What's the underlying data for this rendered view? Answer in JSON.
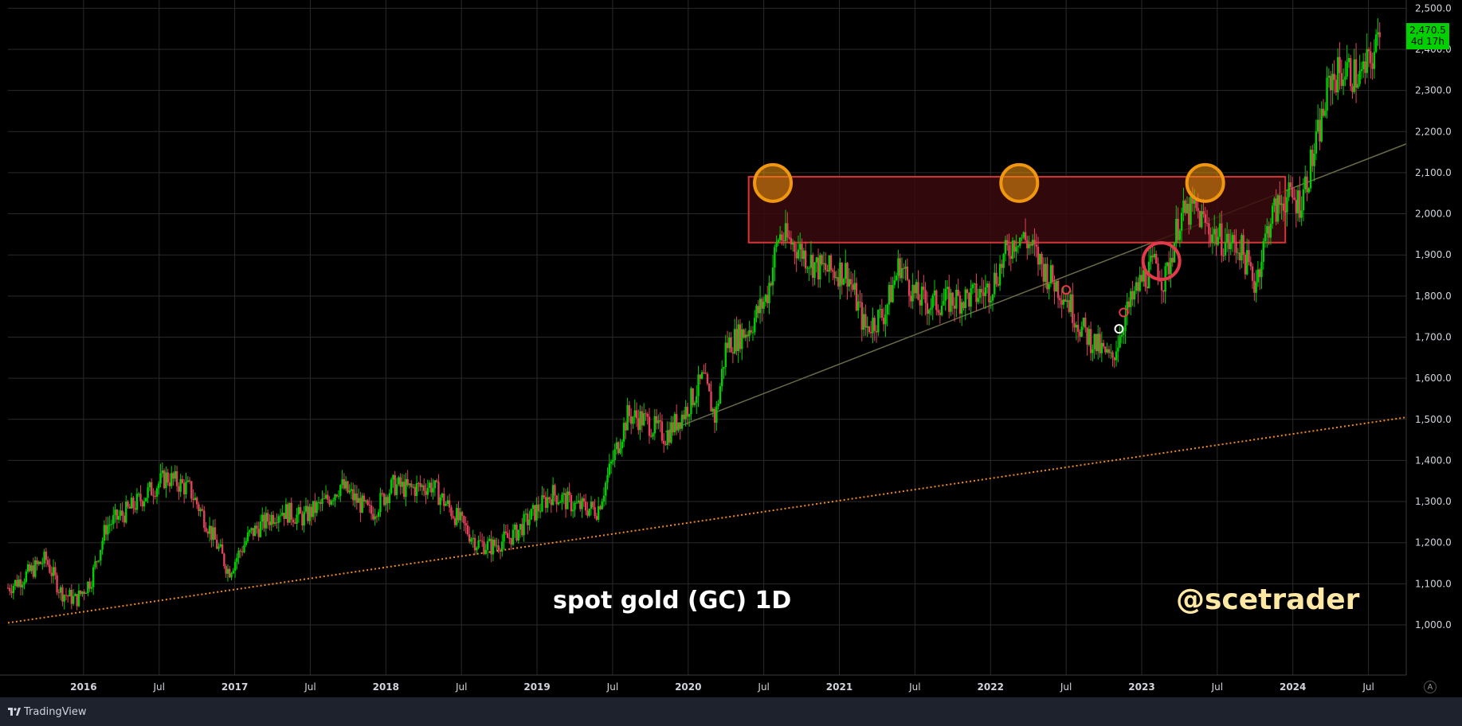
{
  "footer": {
    "brand": "TradingView",
    "logo_icon": "tradingview-logo-icon"
  },
  "annotations": {
    "title_text": "spot gold (GC) 1D",
    "watermark_text": "@scetrader"
  },
  "price_badge": {
    "price": "2,470.5",
    "countdown": "4d 17h"
  },
  "auto_scale_label": "A",
  "chart_data": {
    "type": "candlestick",
    "y_axis": {
      "ticks": [
        1000,
        1100,
        1200,
        1300,
        1400,
        1500,
        1600,
        1700,
        1800,
        1900,
        2000,
        2100,
        2200,
        2300,
        2400,
        2500
      ],
      "tick_labels": [
        "1,000.0",
        "1,100.0",
        "1,200.0",
        "1,300.0",
        "1,400.0",
        "1,500.0",
        "1,600.0",
        "1,700.0",
        "1,800.0",
        "1,900.0",
        "2,000.0",
        "2,100.0",
        "2,200.0",
        "2,300.0",
        "2,400.0",
        "2,500.0"
      ],
      "range": [
        878,
        2520
      ]
    },
    "x_axis": {
      "range": [
        2015.5,
        2024.75
      ],
      "ticks": [
        {
          "t": 2016.0,
          "label": "2016"
        },
        {
          "t": 2016.5,
          "label": "Jul"
        },
        {
          "t": 2017.0,
          "label": "2017"
        },
        {
          "t": 2017.5,
          "label": "Jul"
        },
        {
          "t": 2018.0,
          "label": "2018"
        },
        {
          "t": 2018.5,
          "label": "Jul"
        },
        {
          "t": 2019.0,
          "label": "2019"
        },
        {
          "t": 2019.5,
          "label": "Jul"
        },
        {
          "t": 2020.0,
          "label": "2020"
        },
        {
          "t": 2020.5,
          "label": "Jul"
        },
        {
          "t": 2021.0,
          "label": "2021"
        },
        {
          "t": 2021.5,
          "label": "Jul"
        },
        {
          "t": 2022.0,
          "label": "2022"
        },
        {
          "t": 2022.5,
          "label": "Jul"
        },
        {
          "t": 2023.0,
          "label": "2023"
        },
        {
          "t": 2023.5,
          "label": "Jul"
        },
        {
          "t": 2024.0,
          "label": "2024"
        },
        {
          "t": 2024.5,
          "label": "Jul"
        }
      ]
    },
    "grid": true,
    "colors": {
      "up": "#00d000",
      "down": "#e2435a",
      "grid": "#2a2a2a",
      "zone_border": "#d63636",
      "zone_fill": "#3a0a0e",
      "circle": "#f0960f",
      "circle_red": "#e33a4a",
      "support_line": "#f08a24",
      "trend_line": "#6b6a48"
    },
    "price_path": [
      [
        2015.5,
        1090
      ],
      [
        2015.58,
        1110
      ],
      [
        2015.75,
        1160
      ],
      [
        2015.85,
        1080
      ],
      [
        2015.95,
        1060
      ],
      [
        2016.05,
        1110
      ],
      [
        2016.15,
        1240
      ],
      [
        2016.3,
        1280
      ],
      [
        2016.45,
        1330
      ],
      [
        2016.55,
        1360
      ],
      [
        2016.7,
        1330
      ],
      [
        2016.8,
        1260
      ],
      [
        2016.9,
        1180
      ],
      [
        2016.96,
        1130
      ],
      [
        2017.1,
        1220
      ],
      [
        2017.3,
        1280
      ],
      [
        2017.45,
        1260
      ],
      [
        2017.6,
        1300
      ],
      [
        2017.7,
        1340
      ],
      [
        2017.9,
        1270
      ],
      [
        2018.05,
        1340
      ],
      [
        2018.15,
        1330
      ],
      [
        2018.3,
        1340
      ],
      [
        2018.45,
        1270
      ],
      [
        2018.6,
        1200
      ],
      [
        2018.7,
        1190
      ],
      [
        2018.85,
        1220
      ],
      [
        2019.0,
        1280
      ],
      [
        2019.1,
        1320
      ],
      [
        2019.25,
        1290
      ],
      [
        2019.4,
        1280
      ],
      [
        2019.5,
        1400
      ],
      [
        2019.6,
        1510
      ],
      [
        2019.7,
        1500
      ],
      [
        2019.85,
        1460
      ],
      [
        2019.98,
        1520
      ],
      [
        2020.1,
        1600
      ],
      [
        2020.18,
        1500
      ],
      [
        2020.25,
        1680
      ],
      [
        2020.4,
        1720
      ],
      [
        2020.52,
        1800
      ],
      [
        2020.6,
        1950
      ],
      [
        2020.72,
        1920
      ],
      [
        2020.85,
        1870
      ],
      [
        2020.95,
        1860
      ],
      [
        2021.05,
        1860
      ],
      [
        2021.17,
        1720
      ],
      [
        2021.3,
        1760
      ],
      [
        2021.4,
        1880
      ],
      [
        2021.5,
        1800
      ],
      [
        2021.6,
        1780
      ],
      [
        2021.75,
        1790
      ],
      [
        2021.9,
        1800
      ],
      [
        2022.0,
        1820
      ],
      [
        2022.1,
        1900
      ],
      [
        2022.18,
        1950
      ],
      [
        2022.25,
        1930
      ],
      [
        2022.38,
        1850
      ],
      [
        2022.5,
        1800
      ],
      [
        2022.6,
        1720
      ],
      [
        2022.7,
        1680
      ],
      [
        2022.8,
        1640
      ],
      [
        2022.88,
        1740
      ],
      [
        2023.0,
        1840
      ],
      [
        2023.1,
        1880
      ],
      [
        2023.15,
        1830
      ],
      [
        2023.25,
        1990
      ],
      [
        2023.35,
        2010
      ],
      [
        2023.45,
        1960
      ],
      [
        2023.55,
        1930
      ],
      [
        2023.65,
        1920
      ],
      [
        2023.75,
        1830
      ],
      [
        2023.85,
        1990
      ],
      [
        2023.95,
        2040
      ],
      [
        2024.05,
        2030
      ],
      [
        2024.15,
        2160
      ],
      [
        2024.25,
        2330
      ],
      [
        2024.35,
        2350
      ],
      [
        2024.45,
        2330
      ],
      [
        2024.55,
        2400
      ],
      [
        2024.58,
        2470
      ]
    ],
    "resistance_zone": {
      "t_start": 2020.4,
      "t_end": 2023.95,
      "low": 1930,
      "high": 2090
    },
    "highlight_circles": [
      {
        "t": 2020.56,
        "y": 2075,
        "color": "orange"
      },
      {
        "t": 2022.19,
        "y": 2075,
        "color": "orange"
      },
      {
        "t": 2023.42,
        "y": 2075,
        "color": "orange"
      },
      {
        "t": 2023.13,
        "y": 1885,
        "color": "red"
      }
    ],
    "markers": [
      {
        "t": 2022.5,
        "y": 1815,
        "color": "red"
      },
      {
        "t": 2022.85,
        "y": 1720,
        "color": "white"
      },
      {
        "t": 2022.88,
        "y": 1760,
        "color": "red"
      }
    ],
    "support_line": {
      "t1": 2015.5,
      "y1": 1005,
      "t2": 2024.75,
      "y2": 1505
    },
    "trend_line": {
      "t1": 2019.85,
      "y1": 1470,
      "t2": 2024.75,
      "y2": 2170
    }
  }
}
